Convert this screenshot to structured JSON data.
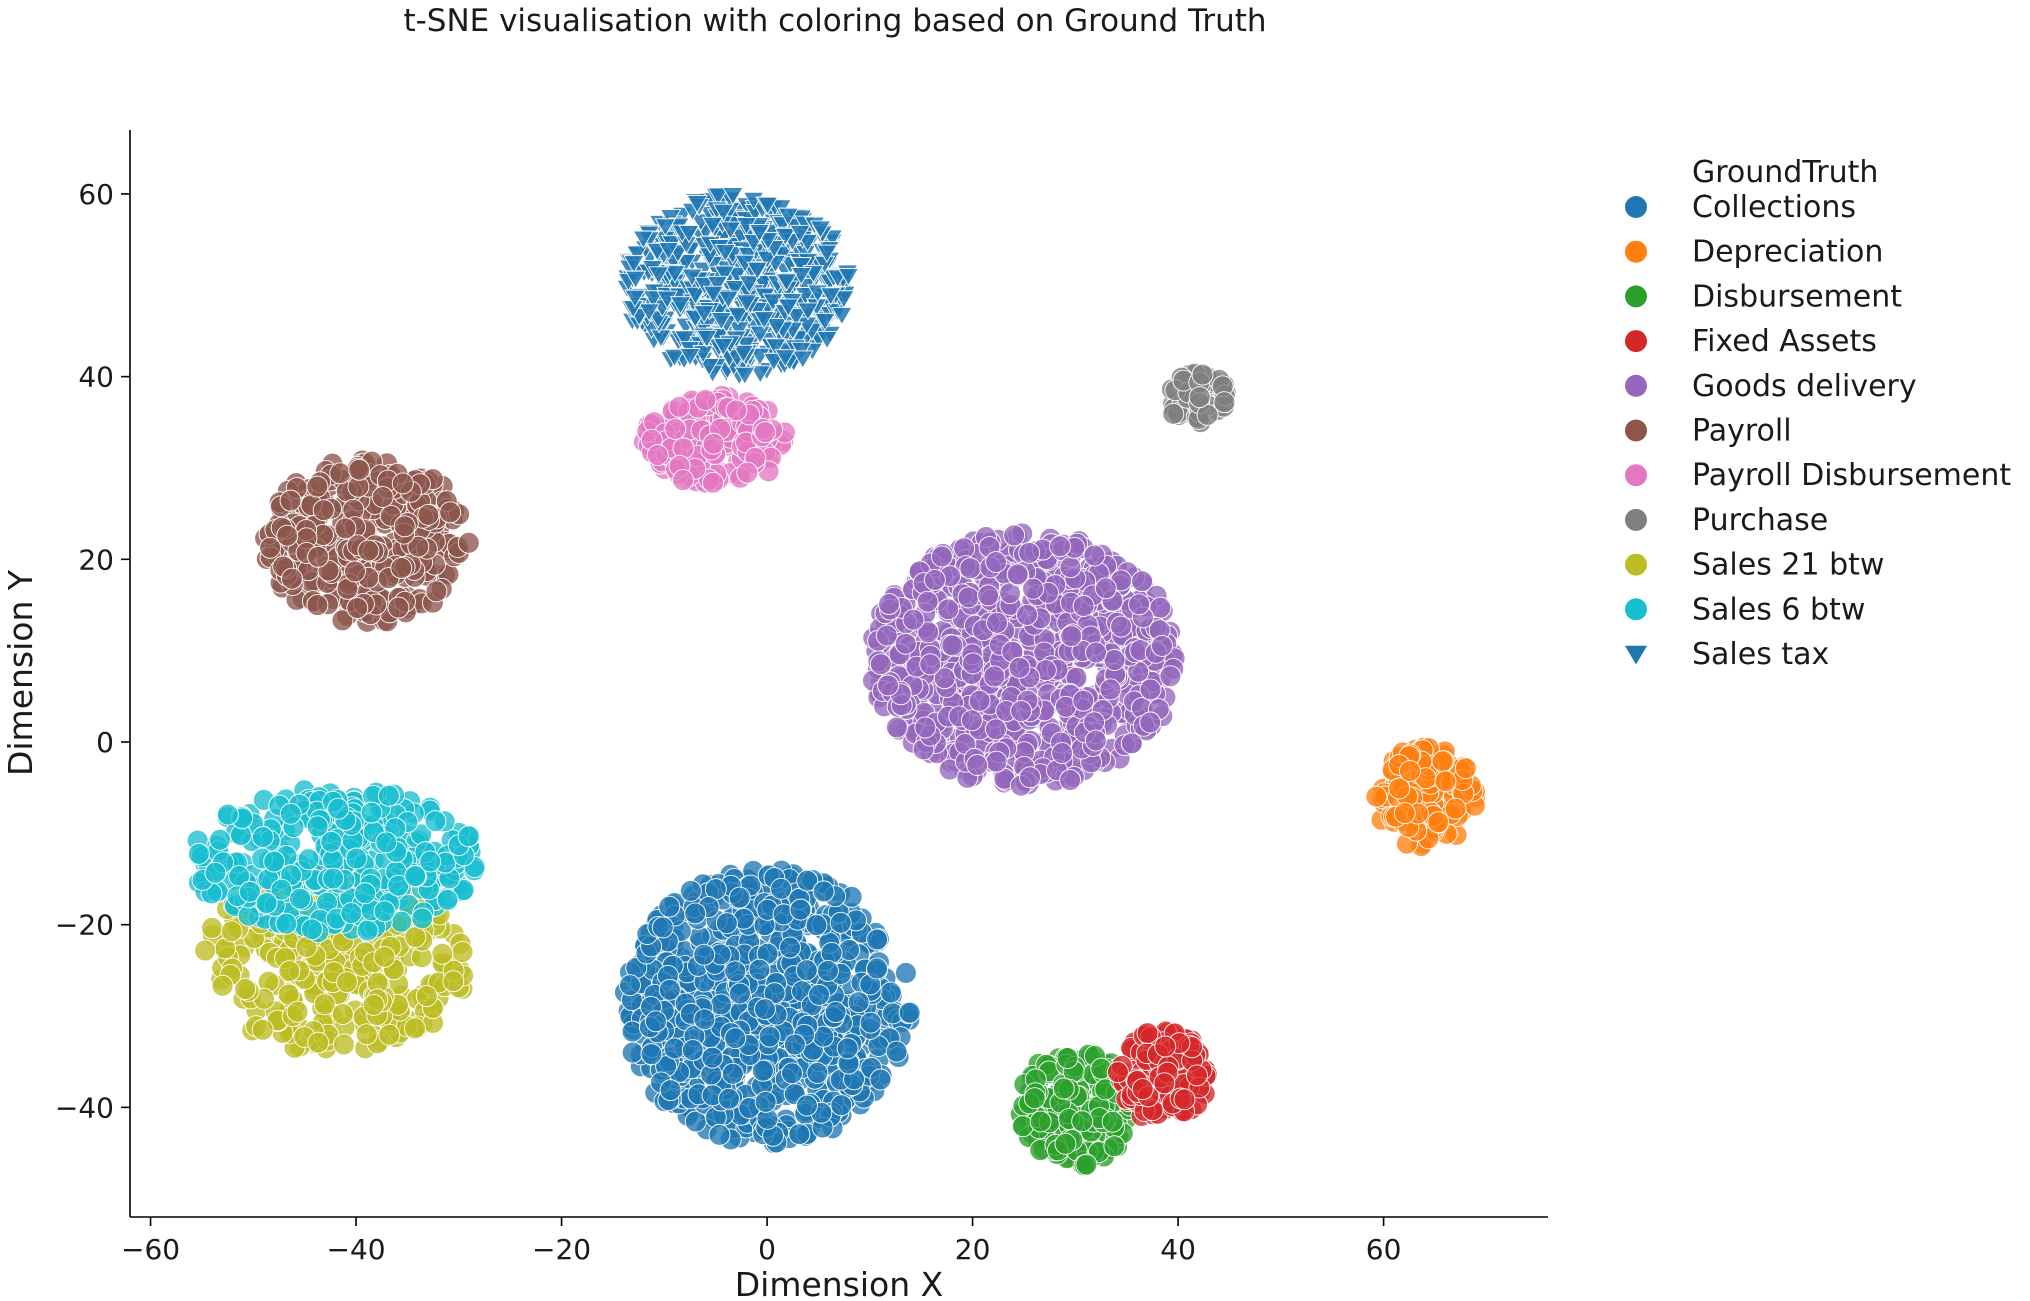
{
  "chart_data": {
    "type": "scatter",
    "title": "t-SNE visualisation with coloring based on Ground Truth",
    "xlabel": "Dimension X",
    "ylabel": "Dimension Y",
    "xlim": [
      -62,
      76
    ],
    "ylim": [
      -52,
      67
    ],
    "xticks": [
      -60,
      -40,
      -20,
      0,
      20,
      40,
      60
    ],
    "yticks": [
      -40,
      -20,
      0,
      20,
      40,
      60
    ],
    "xtick_labels": [
      "−60",
      "−40",
      "−20",
      "0",
      "20",
      "40",
      "60"
    ],
    "ytick_labels": [
      "−40",
      "−20",
      "0",
      "20",
      "40",
      "60"
    ],
    "grid": false,
    "legend": {
      "title": "GroundTruth",
      "placement": "outside-right"
    },
    "series": [
      {
        "name": "Collections",
        "color": "#1f77b4",
        "marker": "circle",
        "center": [
          0,
          -29
        ],
        "spread": [
          14,
          15
        ],
        "count": 800
      },
      {
        "name": "Depreciation",
        "color": "#ff7f0e",
        "marker": "circle",
        "center": [
          64,
          -6
        ],
        "spread": [
          5,
          5.5
        ],
        "count": 140
      },
      {
        "name": "Disbursement",
        "color": "#2ca02c",
        "marker": "circle",
        "center": [
          30,
          -40
        ],
        "spread": [
          5.5,
          6.5
        ],
        "count": 170
      },
      {
        "name": "Fixed Assets",
        "color": "#d62728",
        "marker": "circle",
        "center": [
          38.5,
          -36.5
        ],
        "spread": [
          4.5,
          5
        ],
        "count": 150
      },
      {
        "name": "Goods delivery",
        "color": "#9467bd",
        "marker": "circle",
        "center": [
          25,
          9
        ],
        "spread": [
          15,
          14
        ],
        "count": 850
      },
      {
        "name": "Payroll",
        "color": "#8c564b",
        "marker": "circle",
        "center": [
          -39,
          22
        ],
        "spread": [
          10,
          9
        ],
        "count": 330
      },
      {
        "name": "Payroll Disbursement",
        "color": "#e377c2",
        "marker": "circle",
        "center": [
          -5,
          33
        ],
        "spread": [
          7,
          5
        ],
        "count": 170
      },
      {
        "name": "Purchase",
        "color": "#7f7f7f",
        "marker": "circle",
        "center": [
          42,
          37.5
        ],
        "spread": [
          3,
          3
        ],
        "count": 45
      },
      {
        "name": "Sales 21 btw",
        "color": "#bcbd22",
        "marker": "circle",
        "center": [
          -42,
          -24
        ],
        "spread": [
          13,
          10
        ],
        "count": 330
      },
      {
        "name": "Sales 6 btw",
        "color": "#17becf",
        "marker": "circle",
        "center": [
          -42,
          -13
        ],
        "spread": [
          14,
          8
        ],
        "count": 330
      },
      {
        "name": "Sales tax",
        "color": "#1f77b4",
        "marker": "triangle-down",
        "center": [
          -3,
          50
        ],
        "spread": [
          11,
          10
        ],
        "count": 600
      }
    ]
  }
}
